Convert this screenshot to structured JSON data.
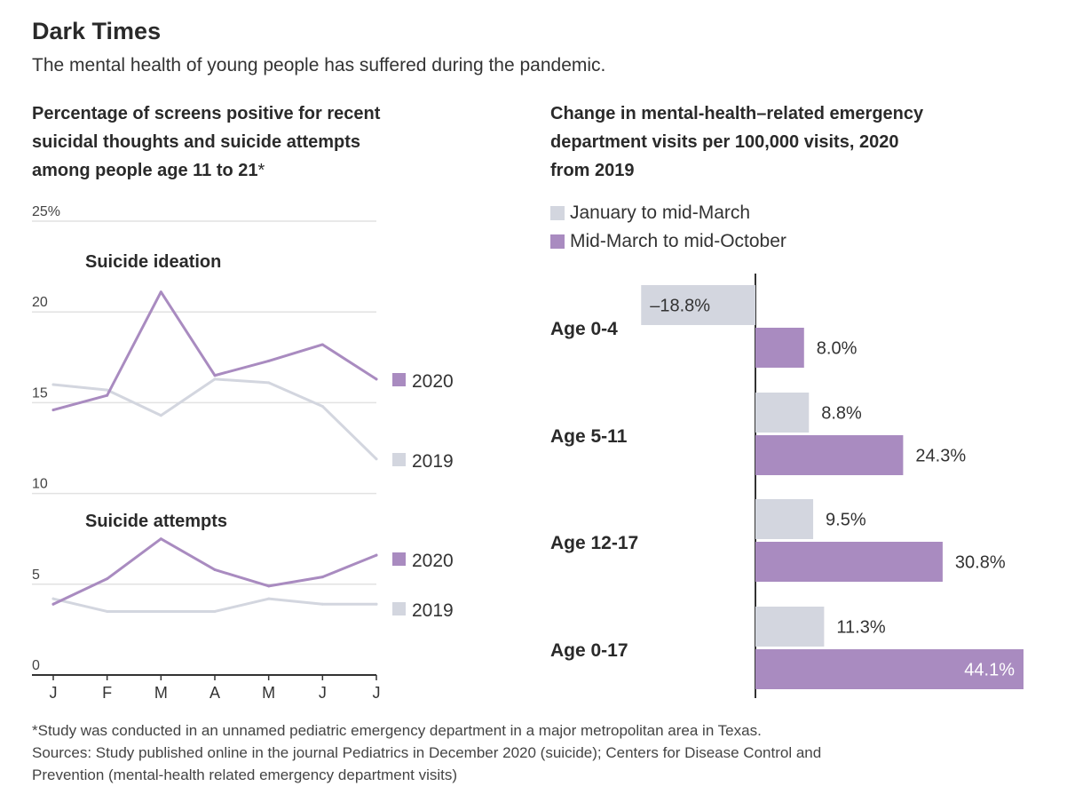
{
  "header": {
    "title": "Dark Times",
    "subtitle": "The mental health of young people has suffered during the pandemic."
  },
  "left_panel": {
    "title_lines": [
      "Percentage of screens positive for recent",
      "suicidal thoughts and suicide attempts",
      "among people age 11 to 21"
    ],
    "title_star": "*"
  },
  "right_panel": {
    "title_lines": [
      "Change in mental-health–related emergency",
      "department visits per 100,000 visits, 2020",
      "from 2019"
    ]
  },
  "footnote": {
    "lines": [
      "*Study was conducted in an unnamed pediatric emergency department in a major metropolitan area in Texas.",
      "Sources: Study published online in the journal Pediatrics in December 2020 (suicide); Centers for Disease Control and",
      "Prevention (mental-health related emergency department visits)"
    ]
  },
  "colors": {
    "purple": "#a98bc0",
    "gray": "#d3d6df",
    "grid": "#e2e2e2",
    "axis": "#333333"
  },
  "chart_data": [
    {
      "type": "line",
      "x": [
        "J",
        "F",
        "M",
        "A",
        "M",
        "J",
        "J"
      ],
      "ylim": [
        0,
        25
      ],
      "yticks": [
        {
          "value": 25,
          "label": "25%"
        },
        {
          "value": 20,
          "label": "20"
        },
        {
          "value": 15,
          "label": "15"
        },
        {
          "value": 10,
          "label": "10"
        },
        {
          "value": 5,
          "label": "5"
        },
        {
          "value": 0,
          "label": "0"
        }
      ],
      "groups": [
        {
          "label": "Suicide ideation",
          "series": [
            {
              "name": "2020",
              "color": "#a98bc0",
              "values": [
                14.6,
                15.4,
                21.1,
                16.5,
                17.3,
                18.2,
                16.3
              ]
            },
            {
              "name": "2019",
              "color": "#d3d6df",
              "values": [
                16.0,
                15.7,
                14.3,
                16.3,
                16.1,
                14.8,
                11.9
              ]
            }
          ]
        },
        {
          "label": "Suicide attempts",
          "series": [
            {
              "name": "2020",
              "color": "#a98bc0",
              "values": [
                3.9,
                5.3,
                7.5,
                5.8,
                4.9,
                5.4,
                6.6
              ]
            },
            {
              "name": "2019",
              "color": "#d3d6df",
              "values": [
                4.2,
                3.5,
                3.5,
                3.5,
                4.2,
                3.9,
                3.9
              ]
            }
          ]
        }
      ]
    },
    {
      "type": "bar",
      "orientation": "horizontal",
      "categories": [
        "Age 0-4",
        "Age 5-11",
        "Age 12-17",
        "Age 0-17"
      ],
      "series": [
        {
          "name": "January to mid-March",
          "color": "#d3d6df",
          "values": [
            -18.8,
            8.8,
            9.5,
            11.3
          ],
          "labels": [
            "–18.8%",
            "8.8%",
            "9.5%",
            "11.3%"
          ]
        },
        {
          "name": "Mid-March to mid-October",
          "color": "#a98bc0",
          "values": [
            8.0,
            24.3,
            30.8,
            44.1
          ],
          "labels": [
            "8.0%",
            "24.3%",
            "30.8%",
            "44.1%"
          ]
        }
      ]
    }
  ]
}
